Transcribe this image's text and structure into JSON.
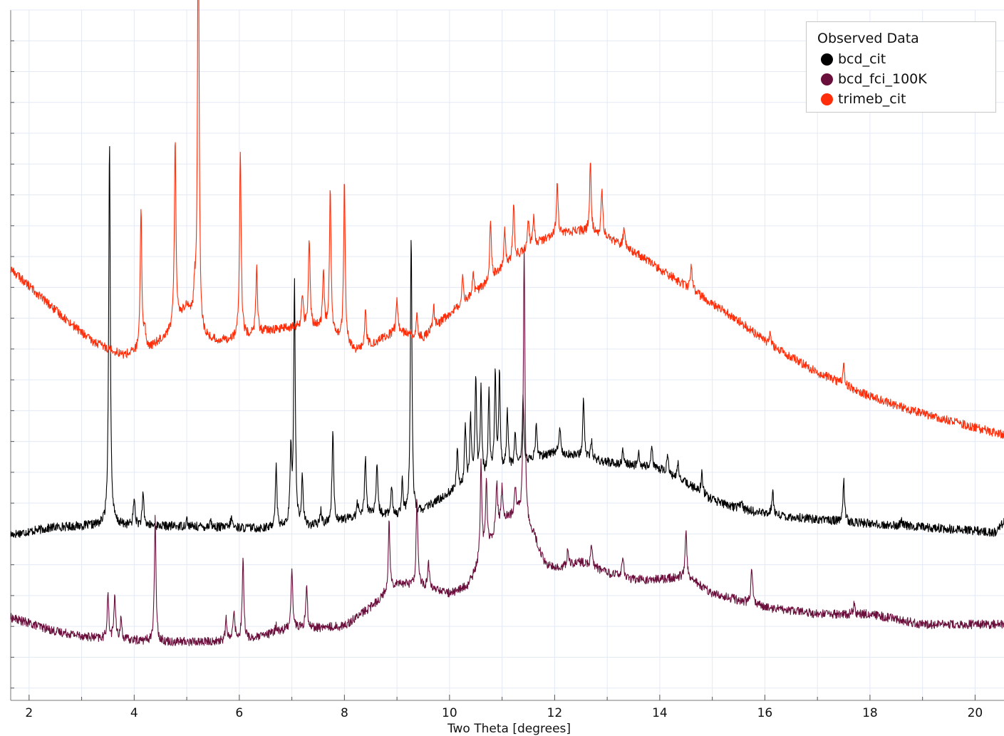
{
  "chart_data": {
    "type": "line",
    "title": "",
    "xlabel": "Two Theta [degrees]",
    "ylabel": "",
    "xlim": [
      1.65,
      20.55
    ],
    "ylim": [
      0,
      100
    ],
    "xticks": [
      2,
      4,
      6,
      8,
      10,
      12,
      14,
      16,
      18,
      20
    ],
    "grid": true,
    "legend": {
      "title": "Observed Data",
      "placement": "top-right"
    },
    "series": [
      {
        "name": "bcd_cit",
        "color": "#000000",
        "baseline": [
          [
            1.65,
            24.0
          ],
          [
            2.5,
            25.1
          ],
          [
            3.5,
            25.4
          ],
          [
            5.0,
            25.2
          ],
          [
            6.5,
            24.9
          ],
          [
            7.5,
            25.3
          ],
          [
            8.5,
            27.0
          ],
          [
            9.3,
            26.5
          ],
          [
            10.0,
            30.0
          ],
          [
            11.0,
            33.0
          ],
          [
            12.0,
            36.0
          ],
          [
            13.0,
            34.5
          ],
          [
            14.0,
            33.5
          ],
          [
            14.5,
            31.5
          ],
          [
            15.0,
            29.0
          ],
          [
            15.5,
            27.8
          ],
          [
            16.0,
            27.0
          ],
          [
            17.0,
            26.2
          ],
          [
            18.0,
            25.6
          ],
          [
            19.0,
            25.1
          ],
          [
            20.0,
            24.6
          ],
          [
            20.4,
            24.3
          ],
          [
            20.55,
            26.0
          ]
        ],
        "peaks": [
          [
            3.53,
            56.0
          ],
          [
            4.0,
            4.0
          ],
          [
            4.17,
            4.5
          ],
          [
            5.0,
            1.0
          ],
          [
            5.45,
            1.0
          ],
          [
            5.85,
            1.5
          ],
          [
            6.7,
            9.0
          ],
          [
            6.98,
            10.0
          ],
          [
            7.05,
            35.0
          ],
          [
            7.2,
            7.0
          ],
          [
            7.55,
            2.0
          ],
          [
            7.78,
            13.5
          ],
          [
            8.25,
            2.0
          ],
          [
            8.4,
            8.5
          ],
          [
            8.62,
            7.0
          ],
          [
            8.9,
            4.0
          ],
          [
            9.1,
            5.0
          ],
          [
            9.27,
            41.0
          ],
          [
            10.15,
            6.0
          ],
          [
            10.3,
            9.0
          ],
          [
            10.4,
            9.5
          ],
          [
            10.5,
            15.0
          ],
          [
            10.6,
            13.0
          ],
          [
            10.75,
            12.0
          ],
          [
            10.87,
            14.0
          ],
          [
            10.95,
            14.0
          ],
          [
            11.1,
            8.5
          ],
          [
            11.25,
            5.0
          ],
          [
            11.4,
            9.5
          ],
          [
            11.65,
            5.0
          ],
          [
            12.1,
            3.5
          ],
          [
            12.55,
            8.5
          ],
          [
            12.7,
            2.5
          ],
          [
            13.3,
            2.0
          ],
          [
            13.6,
            2.0
          ],
          [
            13.85,
            3.0
          ],
          [
            14.15,
            2.5
          ],
          [
            14.35,
            2.0
          ],
          [
            14.8,
            3.0
          ],
          [
            15.55,
            1.5
          ],
          [
            16.15,
            3.5
          ],
          [
            17.5,
            6.0
          ],
          [
            18.6,
            1.0
          ]
        ]
      },
      {
        "name": "bcd_fci_100K",
        "color": "#6a0f3c",
        "baseline": [
          [
            1.65,
            12.0
          ],
          [
            2.5,
            10.0
          ],
          [
            3.3,
            9.0
          ],
          [
            4.5,
            8.5
          ],
          [
            5.5,
            8.5
          ],
          [
            6.3,
            9.0
          ],
          [
            7.0,
            10.5
          ],
          [
            7.5,
            10.5
          ],
          [
            8.0,
            10.8
          ],
          [
            8.5,
            13.5
          ],
          [
            9.0,
            17.0
          ],
          [
            9.5,
            16.5
          ],
          [
            10.0,
            15.5
          ],
          [
            10.35,
            16.5
          ],
          [
            10.7,
            22.0
          ],
          [
            11.0,
            26.0
          ],
          [
            11.3,
            27.0
          ],
          [
            11.6,
            24.0
          ],
          [
            11.8,
            20.0
          ],
          [
            12.0,
            19.0
          ],
          [
            12.5,
            20.0
          ],
          [
            13.0,
            18.5
          ],
          [
            13.5,
            17.5
          ],
          [
            14.0,
            17.5
          ],
          [
            14.5,
            18.0
          ],
          [
            15.0,
            15.5
          ],
          [
            15.5,
            14.5
          ],
          [
            16.0,
            13.5
          ],
          [
            17.0,
            12.5
          ],
          [
            18.0,
            12.5
          ],
          [
            19.0,
            11.0
          ],
          [
            20.0,
            11.0
          ],
          [
            20.55,
            11.0
          ]
        ],
        "peaks": [
          [
            3.5,
            6.5
          ],
          [
            3.63,
            6.5
          ],
          [
            3.75,
            3.0
          ],
          [
            4.4,
            18.0
          ],
          [
            5.75,
            3.0
          ],
          [
            5.9,
            4.5
          ],
          [
            6.07,
            12.0
          ],
          [
            6.7,
            1.0
          ],
          [
            7.0,
            9.0
          ],
          [
            7.28,
            6.5
          ],
          [
            8.85,
            10.0
          ],
          [
            9.38,
            13.0
          ],
          [
            9.6,
            3.5
          ],
          [
            10.6,
            14.0
          ],
          [
            10.7,
            10.0
          ],
          [
            10.9,
            7.0
          ],
          [
            11.0,
            5.0
          ],
          [
            11.25,
            4.0
          ],
          [
            11.42,
            40.0
          ],
          [
            12.25,
            2.5
          ],
          [
            12.7,
            3.5
          ],
          [
            13.3,
            3.0
          ],
          [
            14.5,
            6.5
          ],
          [
            15.75,
            5.5
          ],
          [
            17.7,
            1.5
          ]
        ]
      },
      {
        "name": "trimeb_cit",
        "color": "#ff2d0a",
        "baseline": [
          [
            1.65,
            62.5
          ],
          [
            2.5,
            56.5
          ],
          [
            3.2,
            52.0
          ],
          [
            3.8,
            50.0
          ],
          [
            4.3,
            51.0
          ],
          [
            4.7,
            53.5
          ],
          [
            5.0,
            57.0
          ],
          [
            5.3,
            52.5
          ],
          [
            5.6,
            52.0
          ],
          [
            6.0,
            52.5
          ],
          [
            6.5,
            53.5
          ],
          [
            7.0,
            54.0
          ],
          [
            7.5,
            54.0
          ],
          [
            8.0,
            52.0
          ],
          [
            8.2,
            50.5
          ],
          [
            8.5,
            51.5
          ],
          [
            9.0,
            53.5
          ],
          [
            9.5,
            52.5
          ],
          [
            10.0,
            56.0
          ],
          [
            10.5,
            59.0
          ],
          [
            11.0,
            62.5
          ],
          [
            11.5,
            65.5
          ],
          [
            12.0,
            67.5
          ],
          [
            12.5,
            68.0
          ],
          [
            13.0,
            67.0
          ],
          [
            13.5,
            65.0
          ],
          [
            14.0,
            62.5
          ],
          [
            14.5,
            60.0
          ],
          [
            15.0,
            57.5
          ],
          [
            15.5,
            55.0
          ],
          [
            16.0,
            52.0
          ],
          [
            17.0,
            47.5
          ],
          [
            18.0,
            44.0
          ],
          [
            19.0,
            41.5
          ],
          [
            20.0,
            39.5
          ],
          [
            20.55,
            38.5
          ]
        ],
        "peaks": [
          [
            4.13,
            20.5
          ],
          [
            4.2,
            3.0
          ],
          [
            4.78,
            27.0
          ],
          [
            5.15,
            4.0
          ],
          [
            5.22,
            64.0
          ],
          [
            6.02,
            27.0
          ],
          [
            6.33,
            9.5
          ],
          [
            7.2,
            5.0
          ],
          [
            7.33,
            13.0
          ],
          [
            7.6,
            9.0
          ],
          [
            7.73,
            21.0
          ],
          [
            8.0,
            23.0
          ],
          [
            8.4,
            6.0
          ],
          [
            9.0,
            5.0
          ],
          [
            9.38,
            3.0
          ],
          [
            9.7,
            3.0
          ],
          [
            10.25,
            4.5
          ],
          [
            10.45,
            3.5
          ],
          [
            10.78,
            9.0
          ],
          [
            11.05,
            5.5
          ],
          [
            11.22,
            8.5
          ],
          [
            11.5,
            4.0
          ],
          [
            11.6,
            4.0
          ],
          [
            12.05,
            7.5
          ],
          [
            12.68,
            10.5
          ],
          [
            12.9,
            7.0
          ],
          [
            13.32,
            3.0
          ],
          [
            14.6,
            3.5
          ],
          [
            16.1,
            1.5
          ],
          [
            17.5,
            3.0
          ]
        ]
      }
    ]
  }
}
